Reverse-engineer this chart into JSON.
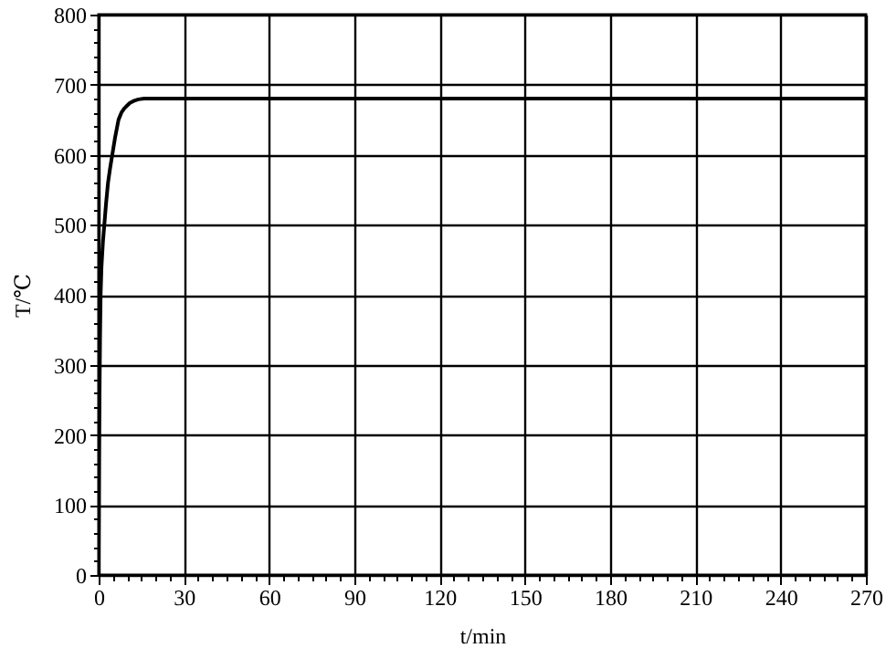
{
  "chart_data": {
    "type": "line",
    "xlabel": "t/min",
    "ylabel": "T/℃",
    "x": [
      0,
      0.15,
      0.3,
      0.5,
      0.7,
      1,
      1.5,
      2,
      2.6,
      3.3,
      4,
      4.8,
      5.8,
      7,
      8,
      9,
      10,
      11,
      12.5,
      14,
      16,
      18,
      20,
      30,
      60,
      90,
      120,
      150,
      180,
      210,
      240,
      270
    ],
    "series": [
      {
        "color": "#000000",
        "values": [
          20,
          150,
          250,
          340,
          400,
          440,
          475,
          500,
          530,
          560,
          580,
          600,
          625,
          650,
          660,
          666,
          670,
          674,
          677,
          679,
          680,
          680,
          680,
          680,
          680,
          680,
          680,
          680,
          680,
          680,
          680,
          680
        ]
      }
    ],
    "xlim": [
      0,
      270
    ],
    "xticks": [
      0,
      {
        "value": 5,
        "label": null
      },
      {
        "value": 10,
        "label": null
      },
      {
        "value": 15,
        "label": null
      },
      {
        "value": 20,
        "label": null
      },
      {
        "value": 25,
        "label": null
      },
      30,
      {
        "value": 35,
        "label": null
      },
      {
        "value": 40,
        "label": null
      },
      {
        "value": 45,
        "label": null
      },
      {
        "value": 50,
        "label": null
      },
      {
        "value": 55,
        "label": null
      },
      60,
      {
        "value": 65,
        "label": null
      },
      {
        "value": 70,
        "label": null
      },
      {
        "value": 75,
        "label": null
      },
      {
        "value": 80,
        "label": null
      },
      {
        "value": 85,
        "label": null
      },
      90,
      {
        "value": 95,
        "label": null
      },
      {
        "value": 100,
        "label": null
      },
      {
        "value": 105,
        "label": null
      },
      {
        "value": 110,
        "label": null
      },
      {
        "value": 115,
        "label": null
      },
      120,
      {
        "value": 125,
        "label": null
      },
      {
        "value": 130,
        "label": null
      },
      {
        "value": 135,
        "label": null
      },
      {
        "value": 140,
        "label": null
      },
      {
        "value": 145,
        "label": null
      },
      150,
      {
        "value": 155,
        "label": null
      },
      {
        "value": 160,
        "label": null
      },
      {
        "value": 165,
        "label": null
      },
      {
        "value": 170,
        "label": null
      },
      {
        "value": 175,
        "label": null
      },
      180,
      {
        "value": 185,
        "label": null
      },
      {
        "value": 190,
        "label": null
      },
      {
        "value": 195,
        "label": null
      },
      {
        "value": 200,
        "label": null
      },
      {
        "value": 205,
        "label": null
      },
      210,
      {
        "value": 215,
        "label": null
      },
      {
        "value": 220,
        "label": null
      },
      {
        "value": 225,
        "label": null
      },
      {
        "value": 230,
        "label": null
      },
      {
        "value": 235,
        "label": null
      },
      240,
      {
        "value": 245,
        "label": null
      },
      {
        "value": 250,
        "label": null
      },
      {
        "value": 255,
        "label": null
      },
      {
        "value": 260,
        "label": null
      },
      {
        "value": 265,
        "label": null
      },
      270
    ],
    "ylim": [
      0,
      800
    ],
    "yticks": [
      0,
      {
        "value": 20,
        "label": null
      },
      {
        "value": 40,
        "label": null
      },
      {
        "value": 60,
        "label": null
      },
      {
        "value": 80,
        "label": null
      },
      100,
      {
        "value": 120,
        "label": null
      },
      {
        "value": 140,
        "label": null
      },
      {
        "value": 160,
        "label": null
      },
      {
        "value": 180,
        "label": null
      },
      200,
      {
        "value": 220,
        "label": null
      },
      {
        "value": 240,
        "label": null
      },
      {
        "value": 260,
        "label": null
      },
      {
        "value": 280,
        "label": null
      },
      300,
      {
        "value": 320,
        "label": null
      },
      {
        "value": 340,
        "label": null
      },
      {
        "value": 360,
        "label": null
      },
      {
        "value": 380,
        "label": null
      },
      400,
      {
        "value": 420,
        "label": null
      },
      {
        "value": 440,
        "label": null
      },
      {
        "value": 460,
        "label": null
      },
      {
        "value": 480,
        "label": null
      },
      500,
      {
        "value": 520,
        "label": null
      },
      {
        "value": 540,
        "label": null
      },
      {
        "value": 560,
        "label": null
      },
      {
        "value": 580,
        "label": null
      },
      600,
      {
        "value": 620,
        "label": null
      },
      {
        "value": 640,
        "label": null
      },
      {
        "value": 660,
        "label": null
      },
      {
        "value": 680,
        "label": null
      },
      700,
      {
        "value": 720,
        "label": null
      },
      {
        "value": 740,
        "label": null
      },
      {
        "value": 760,
        "label": null
      },
      {
        "value": 780,
        "label": null
      },
      800
    ],
    "grid": true,
    "marker": "none",
    "line_style": "solid"
  }
}
